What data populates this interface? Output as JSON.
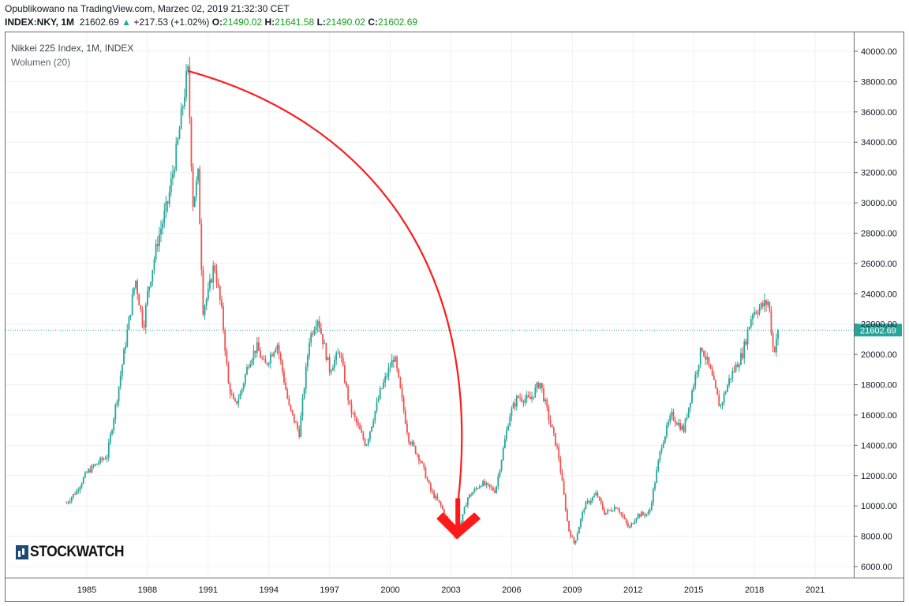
{
  "header": {
    "published": "Opublikowano na TradingView.com, Marzec 02, 2019 21:32:30 CET",
    "symbol": "INDEX:NKY, 1M",
    "last": "21602.69",
    "change_arrow": "▲",
    "change": "+217.53 (+1.02%)",
    "o_label": "O:",
    "o": "21490.02",
    "h_label": "H:",
    "h": "21641.58",
    "l_label": "L:",
    "l": "21490.02",
    "c_label": "C:",
    "c": "21602.69"
  },
  "legend": {
    "name": "Nikkei 225 Index, 1M, INDEX",
    "volume": "Wolumen (20)"
  },
  "logo": {
    "text": "STOCKWATCH"
  },
  "colors": {
    "up": "#26a69a",
    "down": "#ef5350",
    "annotation": "#ff1a1a",
    "last_price_line": "#26a69a",
    "grid": "#eef1f4"
  },
  "chart_data": {
    "type": "line",
    "style": "candlestick",
    "title": "Nikkei 225 Index, 1M, INDEX",
    "ylim": [
      5500,
      40500
    ],
    "xlim": [
      1981.0,
      2023.0
    ],
    "x_ticks": [
      "1985",
      "1988",
      "1991",
      "1994",
      "1997",
      "2000",
      "2003",
      "2006",
      "2009",
      "2012",
      "2015",
      "2018",
      "2021"
    ],
    "y_ticks": [
      "6000.00",
      "8000.00",
      "10000.00",
      "12000.00",
      "14000.00",
      "16000.00",
      "18000.00",
      "20000.00",
      "22000.00",
      "24000.00",
      "26000.00",
      "28000.00",
      "30000.00",
      "32000.00",
      "34000.00",
      "36000.00",
      "38000.00",
      "40000.00"
    ],
    "last_price": 21602.69,
    "last_price_label": "21602.69",
    "grid": true,
    "series": [
      {
        "x": [
          1984.0,
          1984.5,
          1985.0,
          1985.5,
          1986.0,
          1986.5,
          1987.0,
          1987.4,
          1987.8,
          1988.0,
          1988.5,
          1989.0,
          1989.5,
          1989.99,
          1990.25,
          1990.5,
          1990.75,
          1991.0,
          1991.3,
          1991.7,
          1992.0,
          1992.3,
          1992.6,
          1993.0,
          1993.4,
          1993.8,
          1994.4,
          1995.0,
          1995.5,
          1996.0,
          1996.4,
          1997.0,
          1997.5,
          1998.0,
          1998.8,
          1999.5,
          2000.2,
          2000.9,
          2001.5,
          2002.0,
          2002.5,
          2003.0,
          2003.3,
          2003.8,
          2004.5,
          2005.2,
          2005.9,
          2006.3,
          2006.9,
          2007.4,
          2007.8,
          2008.3,
          2008.8,
          2009.1,
          2009.6,
          2010.2,
          2010.6,
          2011.2,
          2011.8,
          2012.2,
          2012.8,
          2013.4,
          2013.9,
          2014.5,
          2014.9,
          2015.4,
          2015.8,
          2016.3,
          2016.8,
          2017.4,
          2017.9,
          2018.2,
          2018.7,
          2018.95,
          2019.15
        ],
        "values": [
          10200,
          11000,
          12200,
          12800,
          13300,
          17200,
          21500,
          25000,
          21800,
          24000,
          27500,
          30000,
          34000,
          38900,
          30000,
          31800,
          23000,
          24000,
          26000,
          22500,
          18000,
          16600,
          17400,
          19500,
          20500,
          19200,
          20800,
          16500,
          14800,
          21000,
          22500,
          19000,
          20200,
          16500,
          14000,
          17500,
          19900,
          14500,
          13000,
          11000,
          10000,
          8500,
          7800,
          10500,
          11500,
          11000,
          16000,
          17200,
          17000,
          18200,
          16000,
          13500,
          8500,
          7500,
          10000,
          10800,
          9500,
          10000,
          8500,
          9400,
          9500,
          14000,
          16000,
          15000,
          17500,
          20500,
          19000,
          16500,
          18500,
          20000,
          22800,
          23000,
          23500,
          20000,
          21602.69
        ]
      }
    ]
  },
  "annotations": {
    "arc_start": {
      "x": 1990.0,
      "y": 38700
    },
    "arc_end": {
      "x": 2003.3,
      "y": 8100
    },
    "arrow_tip": {
      "x": 2003.3,
      "y": 7800
    }
  }
}
